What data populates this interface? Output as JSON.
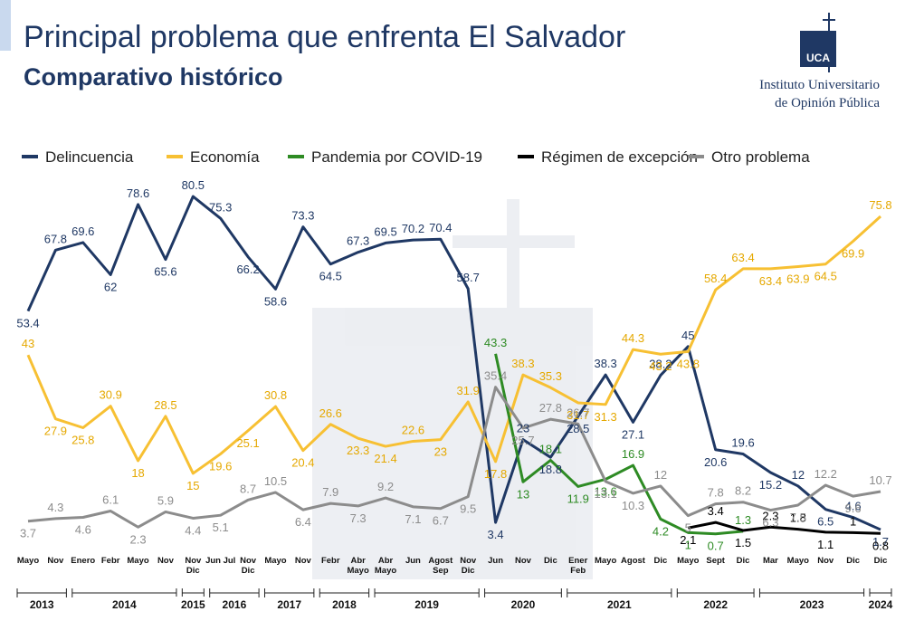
{
  "header": {
    "title": "Principal problema que enfrenta El Salvador",
    "subtitle": "Comparativo histórico",
    "institution_line1": "Instituto Universitario",
    "institution_line2": "de Opinión Pública",
    "logo_text": "UCA"
  },
  "chart_data": {
    "type": "line",
    "categories": [
      "Mayo",
      "Nov",
      "Enero",
      "Febr",
      "Mayo",
      "Nov",
      "Nov Dic",
      "Jun Jul",
      "Nov Dic",
      "Mayo",
      "Nov",
      "Febr",
      "Abr Mayo",
      "Abr Mayo",
      "Jun",
      "Agost Sep",
      "Nov Dic",
      "Jun",
      "Nov",
      "Dic",
      "Ener Feb",
      "Mayo",
      "Agost",
      "Dic",
      "Mayo",
      "Sept",
      "Dic",
      "Mar",
      "Mayo",
      "Nov",
      "Dic",
      "Dic"
    ],
    "years": [
      "2013",
      "2013",
      "2014",
      "2014",
      "2014",
      "2014",
      "2015",
      "2016",
      "2016",
      "2017",
      "2017",
      "2018",
      "2018",
      "2019",
      "2019",
      "2019",
      "2019",
      "2020",
      "2020",
      "2020",
      "2021",
      "2021",
      "2021",
      "2021",
      "2022",
      "2022",
      "2022",
      "2023",
      "2023",
      "2023",
      "2023",
      "2024"
    ],
    "ylim": [
      0,
      85
    ],
    "legend": "top",
    "series": [
      {
        "name": "Delincuencia",
        "color": "#1f3864",
        "values": [
          53.4,
          67.8,
          69.6,
          62,
          78.6,
          65.6,
          80.5,
          75.3,
          66.2,
          58.6,
          73.3,
          64.5,
          67.3,
          69.5,
          70.2,
          70.4,
          58.7,
          3.4,
          23,
          18.8,
          28.5,
          38.3,
          27.1,
          38.2,
          45,
          20.6,
          19.6,
          15.2,
          12,
          6.5,
          4.6,
          1.7
        ]
      },
      {
        "name": "Economía",
        "color": "#f7c033",
        "values": [
          43,
          27.9,
          25.8,
          30.9,
          18,
          28.5,
          15,
          19.6,
          25.1,
          30.8,
          20.4,
          26.6,
          23.3,
          21.4,
          22.6,
          23,
          31.9,
          17.8,
          38.3,
          35.3,
          31.7,
          31.3,
          44.3,
          43.2,
          43.8,
          58.4,
          63.4,
          63.4,
          63.9,
          64.5,
          69.9,
          75.8
        ]
      },
      {
        "name": "Pandemia por COVID-19",
        "color": "#2e8b24",
        "values": [
          null,
          null,
          null,
          null,
          null,
          null,
          null,
          null,
          null,
          null,
          null,
          null,
          null,
          null,
          null,
          null,
          null,
          43.3,
          13,
          18.1,
          11.9,
          13.6,
          16.9,
          4.2,
          1,
          0.7,
          1.3,
          null,
          null,
          null,
          null,
          null
        ]
      },
      {
        "name": "Régimen de excepción",
        "color": "#000000",
        "values": [
          null,
          null,
          null,
          null,
          null,
          null,
          null,
          null,
          null,
          null,
          null,
          null,
          null,
          null,
          null,
          null,
          null,
          null,
          null,
          null,
          null,
          null,
          null,
          null,
          2.1,
          3.4,
          1.5,
          2.3,
          1.8,
          1.1,
          1,
          0.8
        ]
      },
      {
        "name": "Otro problema",
        "color": "#8c8c8c",
        "values": [
          3.7,
          4.3,
          4.6,
          6.1,
          2.3,
          5.9,
          4.4,
          5.1,
          8.7,
          10.5,
          6.4,
          7.9,
          7.3,
          9.2,
          7.1,
          6.7,
          9.5,
          35.4,
          25.7,
          27.8,
          26.7,
          13.1,
          10.3,
          12,
          5,
          7.8,
          8.2,
          6.3,
          7.5,
          12.2,
          9.6,
          10.7
        ]
      }
    ]
  }
}
